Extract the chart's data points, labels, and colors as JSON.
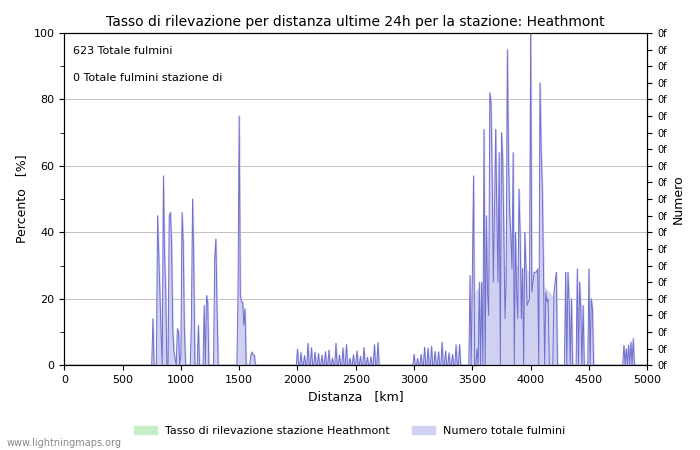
{
  "title": "Tasso di rilevazione per distanza ultime 24h per la stazione: Heathmont",
  "xlabel": "Distanza   [km]",
  "ylabel_left": "Percento   [%]",
  "ylabel_right": "Numero",
  "annotation_line1": "623 Totale fulmini",
  "annotation_line2": "0 Totale fulmini stazione di",
  "legend_label1": "Tasso di rilevazione stazione Heathmont",
  "legend_label2": "Numero totale fulmini",
  "watermark": "www.lightningmaps.org",
  "xlim": [
    0,
    5000
  ],
  "ylim": [
    0,
    100
  ],
  "right_ylim": [
    0,
    100
  ],
  "fill_color_green": "#c8eec8",
  "fill_color_blue": "#d0d0f0",
  "line_color": "#7070d0",
  "background_color": "#ffffff",
  "grid_color": "#aaaaaa",
  "xticks": [
    0,
    500,
    1000,
    1500,
    2000,
    2500,
    3000,
    3500,
    4000,
    4500,
    5000
  ],
  "yticks_left": [
    0,
    20,
    40,
    60,
    80,
    100
  ],
  "figwidth": 7.0,
  "figheight": 4.5,
  "dpi": 100
}
